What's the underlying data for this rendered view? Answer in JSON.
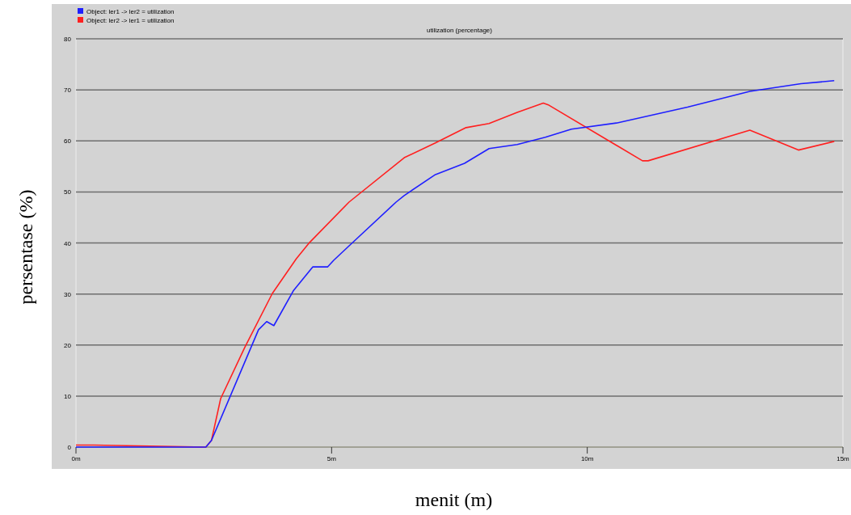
{
  "chart_data": {
    "type": "line",
    "title": "utilization (percentage)",
    "xlabel": "menit (m)",
    "ylabel": "persentase (%)",
    "xlim": [
      0,
      15
    ],
    "xticks": [
      {
        "value": 0,
        "label": "0m"
      },
      {
        "value": 5,
        "label": "5m"
      },
      {
        "value": 10,
        "label": "10m"
      },
      {
        "value": 15,
        "label": "15m"
      }
    ],
    "ylim": [
      0,
      80
    ],
    "yticks": [
      0,
      10,
      20,
      30,
      40,
      50,
      60,
      70,
      80
    ],
    "grid": "y",
    "legend": "top left",
    "marker": "none",
    "line_style": "solid",
    "series": [
      {
        "name": "Object: ler1 -> ler2 = utilization",
        "color": "#1f1fff",
        "x": [
          0,
          2.54,
          2.65,
          3.57,
          3.73,
          3.87,
          4.25,
          4.63,
          4.92,
          5.04,
          5.36,
          6.26,
          6.42,
          7.03,
          7.6,
          8.08,
          8.63,
          9.18,
          9.69,
          10.57,
          11.96,
          13.18,
          14.18,
          14.83
        ],
        "values": [
          0,
          0,
          1.3,
          23,
          24.6,
          23.8,
          30.6,
          35.3,
          35.3,
          36.6,
          39.6,
          48,
          49.3,
          53.4,
          55.6,
          58.5,
          59.3,
          60.7,
          62.3,
          63.5,
          66.6,
          69.7,
          71.2,
          71.8
        ]
      },
      {
        "name": "Object: ler2 -> ler1 = utilization",
        "color": "#ff2020",
        "x": [
          0,
          0.35,
          2.54,
          2.65,
          2.83,
          3.3,
          3.84,
          4.31,
          4.57,
          5.34,
          6.42,
          7.03,
          7.63,
          8.08,
          8.63,
          9.14,
          9.25,
          11.08,
          11.19,
          13.18,
          14.13,
          14.83
        ],
        "values": [
          0.4,
          0.4,
          0,
          1.3,
          9.5,
          19.5,
          30.1,
          36.9,
          40.1,
          48,
          56.7,
          59.6,
          62.6,
          63.4,
          65.6,
          67.4,
          67,
          56.1,
          56.1,
          62.1,
          58.2,
          59.9
        ]
      }
    ]
  }
}
